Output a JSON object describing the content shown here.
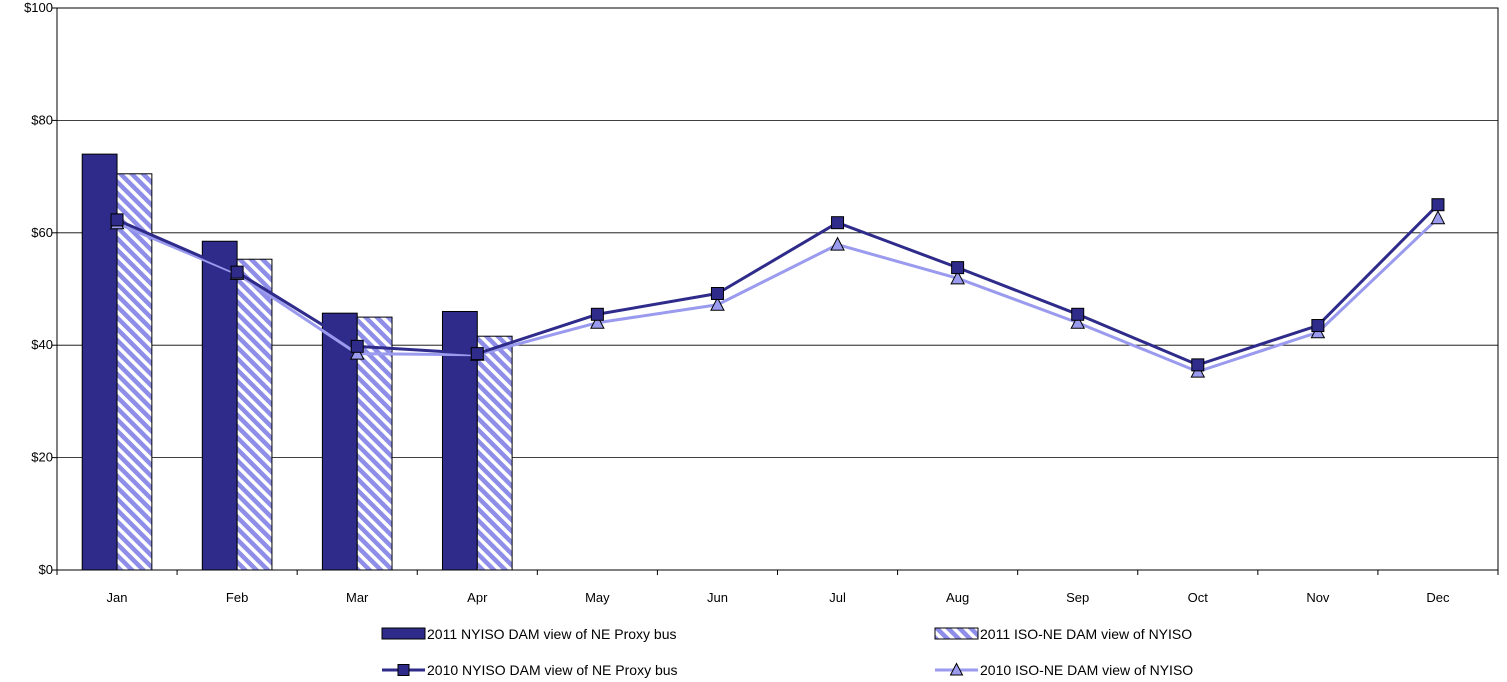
{
  "chart_data": {
    "type": "bar",
    "categories": [
      "Jan",
      "Feb",
      "Mar",
      "Apr",
      "May",
      "Jun",
      "Jul",
      "Aug",
      "Sep",
      "Oct",
      "Nov",
      "Dec"
    ],
    "ylim": [
      0,
      100
    ],
    "yticks": [
      0,
      20,
      40,
      60,
      80,
      100
    ],
    "ytick_labels": [
      "$0",
      "$20",
      "$40",
      "$60",
      "$80",
      "$100"
    ],
    "grid": true,
    "legend_position": "bottom",
    "bar_series": [
      {
        "name": "2011 NYISO DAM view of NE Proxy bus",
        "values": [
          74.0,
          58.5,
          45.7,
          46.0
        ],
        "color": "#2e2b8a",
        "pattern": "solid"
      },
      {
        "name": "2011 ISO-NE DAM view of NYISO",
        "values": [
          70.5,
          55.3,
          45.0,
          41.6
        ],
        "color": "#8e8ee8",
        "pattern": "diagonal-stripes"
      }
    ],
    "line_series": [
      {
        "name": "2010 NYISO DAM view of NE Proxy bus",
        "values": [
          62.3,
          53.0,
          39.8,
          38.5,
          45.5,
          49.2,
          61.8,
          53.8,
          45.5,
          36.5,
          43.5,
          65.0
        ],
        "color": "#2e2b8a",
        "marker": "square"
      },
      {
        "name": "2010 ISO-NE DAM view of NYISO",
        "values": [
          61.7,
          52.7,
          38.5,
          38.3,
          44.0,
          47.2,
          57.9,
          51.9,
          44.0,
          35.3,
          42.3,
          62.6
        ],
        "color": "#9a9aee",
        "marker": "triangle"
      }
    ]
  }
}
